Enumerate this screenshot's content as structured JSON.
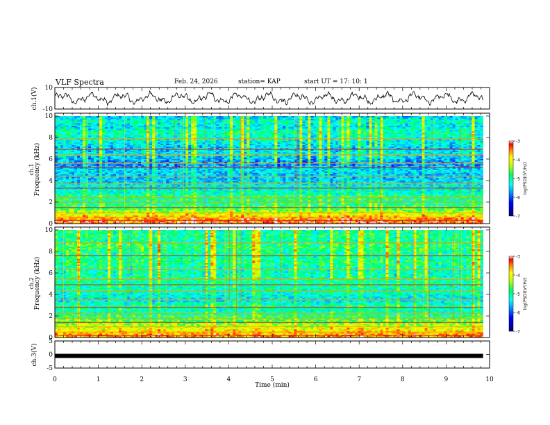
{
  "header": {
    "title": "VLF Spectra",
    "date": "Feb. 24, 2026",
    "station": "station= KAP",
    "start": "start  UT  =   17: 10: 1"
  },
  "chart_data": {
    "type": "heatmap",
    "title": "VLF Spectra",
    "xlabel": "Time  (min)",
    "xlim": [
      0,
      10
    ],
    "xticks": [
      "0",
      "1",
      "2",
      "3",
      "4",
      "5",
      "6",
      "7",
      "8",
      "9",
      "10"
    ],
    "data_end_min": 9.85,
    "panels": [
      {
        "id": "ch1-waveform",
        "type": "line",
        "ylabel": "ch.1(V)",
        "ylim": [
          -10,
          10
        ],
        "yticks": [
          "10",
          "-10"
        ],
        "note": "noisy oscillating trace roughly between -6 and 6 V"
      },
      {
        "id": "ch1-spectrogram",
        "type": "heatmap",
        "ylabel": "ch.1\nFrequency  (kHz)",
        "ylim": [
          0,
          10
        ],
        "yticks": [
          "0",
          "2",
          "4",
          "6",
          "8",
          "10"
        ],
        "colorbar": {
          "label": "log(PSD)(V²/Hz)",
          "range": [
            -7,
            -3
          ],
          "ticks": [
            "-3",
            "-4",
            "-5",
            "-6",
            "-7"
          ]
        },
        "profile_log_psd": [
          -3.3,
          -3.6,
          -4.2,
          -4.8,
          -5.0,
          -4.9,
          -5.2,
          -5.3,
          -5.5,
          -5.6,
          -5.4,
          -5.8,
          -5.6,
          -5.3,
          -5.5,
          -5.3,
          -5.2,
          -5.0,
          -5.4,
          -5.1,
          -5.6
        ],
        "bands_khz": [
          0.3,
          0.6,
          1.0,
          1.5,
          2.0,
          2.4,
          3.3,
          3.7,
          4.4,
          5.2,
          5.6,
          6.4,
          6.9,
          7.9
        ]
      },
      {
        "id": "ch2-spectrogram",
        "type": "heatmap",
        "ylabel": "ch.2\nFrequency  (kHz)",
        "ylim": [
          0,
          10
        ],
        "yticks": [
          "0",
          "2",
          "4",
          "6",
          "8",
          "10"
        ],
        "colorbar": {
          "label": "log(PSD)(V²/Hz)",
          "range": [
            -7,
            -3
          ],
          "ticks": [
            "-3",
            "-4",
            "-5",
            "-6",
            "-7"
          ]
        },
        "profile_log_psd": [
          -3.5,
          -3.8,
          -4.2,
          -4.6,
          -4.9,
          -5.1,
          -5.0,
          -5.4,
          -5.2,
          -5.1,
          -5.0,
          -5.0,
          -5.1,
          -5.0,
          -4.9,
          -5.0,
          -4.9,
          -4.8,
          -5.0,
          -4.9,
          -5.0
        ],
        "bands_khz": [
          0.2,
          0.5,
          1.0,
          1.4,
          1.8,
          2.2,
          2.8,
          3.5,
          4.3,
          4.9,
          5.4,
          6.3,
          7.6,
          8.8
        ]
      },
      {
        "id": "ch3-waveform",
        "type": "line",
        "ylabel": "ch.3(V)",
        "ylim": [
          -5,
          5
        ],
        "yticks": [
          "5",
          "0",
          "-5"
        ],
        "level_v": -0.5,
        "note": "flat thick trace"
      }
    ]
  }
}
